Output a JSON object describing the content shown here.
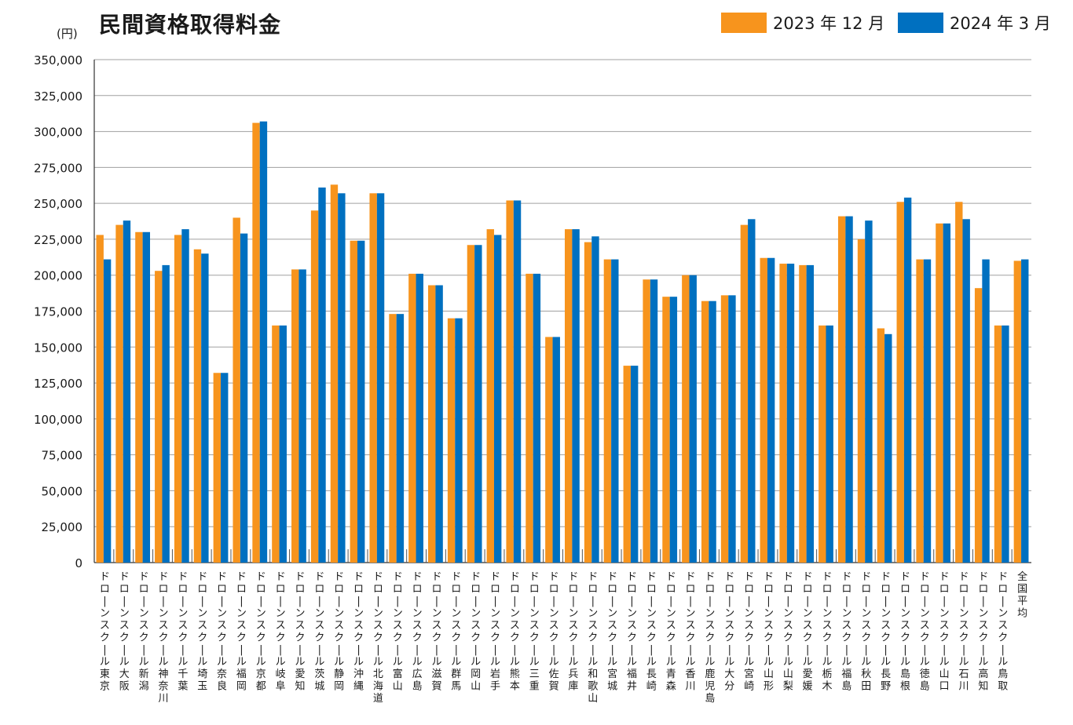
{
  "chart_data": {
    "type": "bar",
    "title": "民間資格取得料金",
    "unit_label": "(円)",
    "ylim": [
      0,
      350000
    ],
    "yticks": [
      "0",
      "25,000",
      "50,000",
      "75,000",
      "100,000",
      "125,000",
      "150,000",
      "175,000",
      "200,000",
      "225,000",
      "250,000",
      "275,000",
      "300,000",
      "325,000",
      "350,000"
    ],
    "grid": true,
    "legend_position": "top-right",
    "colors": {
      "s2023": "#F7941D",
      "s2024": "#0070C0",
      "grid": "#a0a0a0",
      "axis": "#333333"
    },
    "series": [
      {
        "name": "2023 年 12 月",
        "values": [
          228000,
          235000,
          230000,
          203000,
          228000,
          218000,
          132000,
          240000,
          306000,
          165000,
          204000,
          245000,
          263000,
          224000,
          257000,
          173000,
          201000,
          193000,
          170000,
          221000,
          232000,
          252000,
          201000,
          157000,
          232000,
          223000,
          211000,
          137000,
          197000,
          185000,
          200000,
          182000,
          186000,
          235000,
          212000,
          208000,
          207000,
          165000,
          241000,
          225000,
          163000,
          251000,
          211000,
          236000,
          251000,
          191000,
          165000,
          210000
        ]
      },
      {
        "name": "2024 年 3 月",
        "values": [
          211000,
          238000,
          230000,
          207000,
          232000,
          215000,
          132000,
          229000,
          307000,
          165000,
          204000,
          261000,
          257000,
          224000,
          257000,
          173000,
          201000,
          193000,
          170000,
          221000,
          228000,
          252000,
          201000,
          157000,
          232000,
          227000,
          211000,
          137000,
          197000,
          185000,
          200000,
          182000,
          186000,
          239000,
          212000,
          208000,
          207000,
          165000,
          241000,
          238000,
          159000,
          254000,
          211000,
          236000,
          239000,
          211000,
          165000,
          211000
        ]
      }
    ],
    "categories": [
      [
        "ドローンスクール",
        "東京"
      ],
      [
        "ドローンスクール",
        "大阪"
      ],
      [
        "ドローンスクール",
        "新潟"
      ],
      [
        "ドローンスクール",
        "神奈川"
      ],
      [
        "ドローンスクール",
        "千葉"
      ],
      [
        "ドローンスクール",
        "埼玉"
      ],
      [
        "ドローンスクール",
        "奈良"
      ],
      [
        "ドローンスクール",
        "福岡"
      ],
      [
        "ドローンスクール",
        "京都"
      ],
      [
        "ドローンスクール",
        "岐阜"
      ],
      [
        "ドローンスクール",
        "愛知"
      ],
      [
        "ドローンスクール",
        "茨城"
      ],
      [
        "ドローンスクール",
        "静岡"
      ],
      [
        "ドローンスクール",
        "沖縄"
      ],
      [
        "ドローンスクール",
        "北海道"
      ],
      [
        "ドローンスクール",
        "富山"
      ],
      [
        "ドローンスクール",
        "広島"
      ],
      [
        "ドローンスクール",
        "滋賀"
      ],
      [
        "ドローンスクール",
        "群馬"
      ],
      [
        "ドローンスクール",
        "岡山"
      ],
      [
        "ドローンスクール",
        "岩手"
      ],
      [
        "ドローンスクール",
        "熊本"
      ],
      [
        "ドローンスクール",
        "三重"
      ],
      [
        "ドローンスクール",
        "佐賀"
      ],
      [
        "ドローンスクール",
        "兵庫"
      ],
      [
        "ドローンスクール",
        "和歌山"
      ],
      [
        "ドローンスクール",
        "宮城"
      ],
      [
        "ドローンスクール",
        "福井"
      ],
      [
        "ドローンスクール",
        "長崎"
      ],
      [
        "ドローンスクール",
        "青森"
      ],
      [
        "ドローンスクール",
        "香川"
      ],
      [
        "ドローンスクール",
        "鹿児島"
      ],
      [
        "ドローンスクール",
        "大分"
      ],
      [
        "ドローンスクール",
        "宮崎"
      ],
      [
        "ドローンスクール",
        "山形"
      ],
      [
        "ドローンスクール",
        "山梨"
      ],
      [
        "ドローンスクール",
        "愛媛"
      ],
      [
        "ドローンスクール",
        "栃木"
      ],
      [
        "ドローンスクール",
        "福島"
      ],
      [
        "ドローンスクール",
        "秋田"
      ],
      [
        "ドローンスクール",
        "長野"
      ],
      [
        "ドローンスクール",
        "島根"
      ],
      [
        "ドローンスクール",
        "徳島"
      ],
      [
        "ドローンスクール",
        "山口"
      ],
      [
        "ドローンスクール",
        "石川"
      ],
      [
        "ドローンスクール",
        "高知"
      ],
      [
        "ドローンスクール",
        "鳥取"
      ],
      [
        "",
        "全国平均"
      ]
    ]
  }
}
